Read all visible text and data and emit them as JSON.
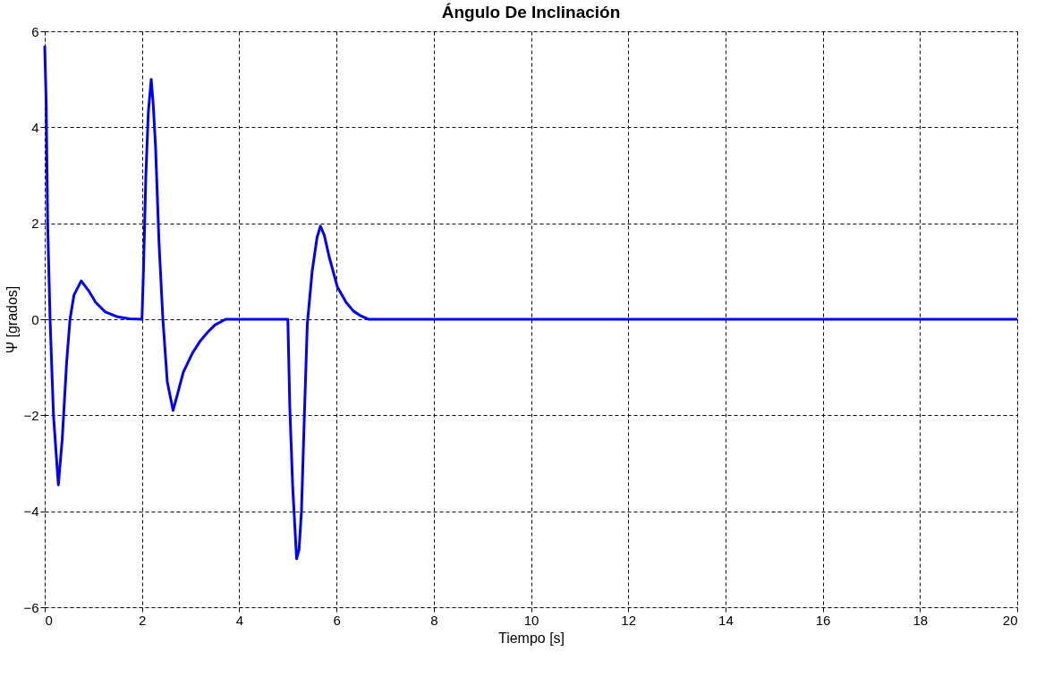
{
  "chart_data": {
    "type": "line",
    "title": "Ángulo De Inclinación",
    "xlabel": "Tiempo [s]",
    "ylabel": "Ψ [grados]",
    "xlim": [
      0,
      20
    ],
    "xticks": [
      0,
      2,
      4,
      6,
      8,
      10,
      12,
      14,
      16,
      18,
      20
    ],
    "ylim": [
      -6,
      6
    ],
    "yticks": [
      -6,
      -4,
      -2,
      0,
      2,
      4,
      6
    ],
    "grid": true,
    "line_style": "solid",
    "marker": "none",
    "series": [
      {
        "color": "#0000ff",
        "x": [
          0,
          0.03,
          0.06,
          0.11,
          0.18,
          0.28,
          0.36,
          0.45,
          0.52,
          0.6,
          0.75,
          0.9,
          1.05,
          1.25,
          1.5,
          1.75,
          2.0,
          2.03,
          2.08,
          2.13,
          2.19,
          2.23,
          2.28,
          2.35,
          2.43,
          2.52,
          2.64,
          2.72,
          2.85,
          3.04,
          3.2,
          3.35,
          3.5,
          3.72,
          5.0,
          5.04,
          5.1,
          5.18,
          5.23,
          5.28,
          5.34,
          5.4,
          5.5,
          5.6,
          5.67,
          5.75,
          5.85,
          6.02,
          6.2,
          6.35,
          6.5,
          6.66,
          20
        ],
        "values": [
          5.7,
          4.5,
          2.0,
          0,
          -2.0,
          -3.45,
          -2.5,
          -0.9,
          0,
          0.5,
          0.8,
          0.6,
          0.35,
          0.15,
          0.05,
          0.01,
          0,
          1.0,
          3.0,
          4.3,
          5.0,
          4.5,
          3.58,
          1.6,
          0,
          -1.3,
          -1.9,
          -1.6,
          -1.1,
          -0.7,
          -0.45,
          -0.27,
          -0.12,
          0,
          0,
          -1.82,
          -3.5,
          -4.99,
          -4.8,
          -4.0,
          -2.0,
          -0.1,
          1.0,
          1.7,
          1.94,
          1.75,
          1.3,
          0.67,
          0.35,
          0.17,
          0.07,
          0,
          0
        ]
      }
    ]
  }
}
